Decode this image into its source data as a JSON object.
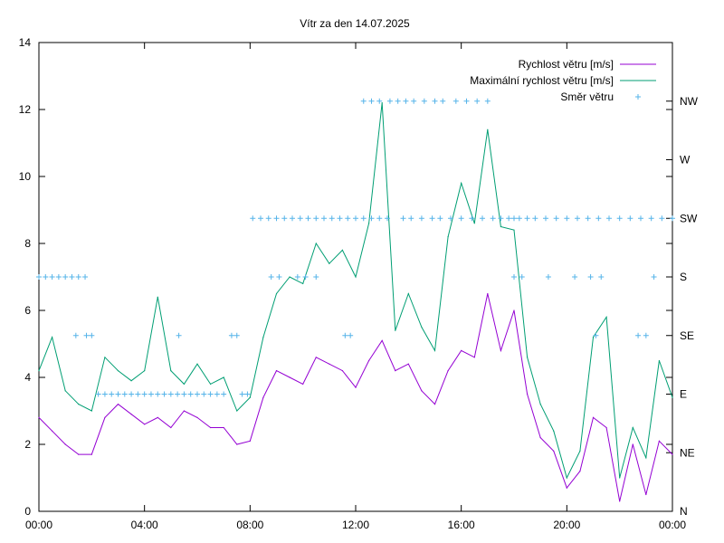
{
  "chart_data": {
    "type": "line",
    "title": "Vítr za den 14.07.2025",
    "x_ticks": [
      "00:00",
      "04:00",
      "08:00",
      "12:00",
      "16:00",
      "20:00",
      "00:00"
    ],
    "x_range_hours": [
      0,
      24
    ],
    "y_range": [
      0,
      14
    ],
    "y_ticks": [
      0,
      2,
      4,
      6,
      8,
      10,
      12,
      14
    ],
    "y2_range_degrees": [
      0,
      360
    ],
    "y2_ticks": [
      "N",
      "NE",
      "E",
      "SE",
      "S",
      "SW",
      "W",
      "NW"
    ],
    "grid": false,
    "legend": "top-right",
    "colors": {
      "speed": "#9400d3",
      "gust": "#009e73",
      "direction": "#56b4e9"
    },
    "series": [
      {
        "name": "Rychlost větru [m/s]",
        "axis": "left",
        "style": "line",
        "x": [
          0,
          0.5,
          1,
          1.5,
          2,
          2.5,
          3,
          3.5,
          4,
          4.5,
          5,
          5.5,
          6,
          6.5,
          7,
          7.5,
          8,
          8.5,
          9,
          9.5,
          10,
          10.5,
          11,
          11.5,
          12,
          12.5,
          13,
          13.5,
          14,
          14.5,
          15,
          15.5,
          16,
          16.5,
          17,
          17.5,
          18,
          18.5,
          19,
          19.5,
          20,
          20.5,
          21,
          21.5,
          22,
          22.5,
          23,
          23.5,
          24
        ],
        "values": [
          2.8,
          2.4,
          2.0,
          1.7,
          1.7,
          2.8,
          3.2,
          2.9,
          2.6,
          2.8,
          2.5,
          3.0,
          2.8,
          2.5,
          2.5,
          2.0,
          2.1,
          3.4,
          4.2,
          4.0,
          3.8,
          4.6,
          4.4,
          4.2,
          3.7,
          4.5,
          5.1,
          4.2,
          4.4,
          3.6,
          3.2,
          4.2,
          4.8,
          4.6,
          6.5,
          4.8,
          6.0,
          3.5,
          2.2,
          1.8,
          0.7,
          1.2,
          2.8,
          2.5,
          0.3,
          2.0,
          0.5,
          2.1,
          1.7
        ]
      },
      {
        "name": "Maximální rychlost větru [m/s]",
        "axis": "left",
        "style": "line",
        "x": [
          0,
          0.5,
          1,
          1.5,
          2,
          2.5,
          3,
          3.5,
          4,
          4.5,
          5,
          5.5,
          6,
          6.5,
          7,
          7.5,
          8,
          8.5,
          9,
          9.5,
          10,
          10.5,
          11,
          11.5,
          12,
          12.5,
          13,
          13.5,
          14,
          14.5,
          15,
          15.5,
          16,
          16.5,
          17,
          17.5,
          18,
          18.5,
          19,
          19.5,
          20,
          20.5,
          21,
          21.5,
          22,
          22.5,
          23,
          23.5,
          24
        ],
        "values": [
          4.2,
          5.2,
          3.6,
          3.2,
          3.0,
          4.6,
          4.2,
          3.9,
          4.2,
          6.4,
          4.2,
          3.8,
          4.4,
          3.8,
          4.0,
          3.0,
          3.4,
          5.2,
          6.5,
          7.0,
          6.8,
          8.0,
          7.4,
          7.8,
          7.0,
          8.6,
          12.2,
          5.4,
          6.5,
          5.5,
          4.8,
          8.2,
          9.8,
          8.6,
          11.4,
          8.5,
          8.4,
          4.6,
          3.2,
          2.4,
          1.0,
          1.8,
          5.2,
          5.8,
          1.0,
          2.5,
          1.6,
          4.5,
          3.4
        ]
      },
      {
        "name": "Směr větru",
        "axis": "right",
        "style": "points",
        "unit": "degrees",
        "x": [
          0,
          0.25,
          0.5,
          0.75,
          1,
          1.25,
          1.5,
          1.75,
          1.4,
          1.8,
          2.0,
          2.25,
          2.5,
          2.75,
          3,
          3.25,
          3.5,
          3.75,
          4,
          4.25,
          4.5,
          4.75,
          5,
          5.25,
          5.5,
          5.75,
          6,
          6.25,
          6.5,
          6.75,
          7,
          5.3,
          7.3,
          7.5,
          7.7,
          7.9,
          8.1,
          8.4,
          8.7,
          9.0,
          9.3,
          9.6,
          9.9,
          10.2,
          10.5,
          10.8,
          11.1,
          11.4,
          11.7,
          12.0,
          12.3,
          12.6,
          12.9,
          13.2,
          8.8,
          9.1,
          9.8,
          10.1,
          10.5,
          11.6,
          11.8,
          12.3,
          12.6,
          12.9,
          13.3,
          13.6,
          13.9,
          14.2,
          14.6,
          15.0,
          15.3,
          15.8,
          16.2,
          16.6,
          17.0,
          13.8,
          14.1,
          14.5,
          14.9,
          15.2,
          15.6,
          16.0,
          16.4,
          16.8,
          17.2,
          17.5,
          17.8,
          18.0,
          18.2,
          18.5,
          18.8,
          19.2,
          19.6,
          20.0,
          20.4,
          20.8,
          21.2,
          21.6,
          22.0,
          22.4,
          22.8,
          23.2,
          23.6,
          24.0,
          18.0,
          18.3,
          19.3,
          20.3,
          20.9,
          21.3,
          23.3,
          21.1,
          22.7,
          23.0
        ],
        "values": [
          180,
          180,
          180,
          180,
          180,
          180,
          180,
          180,
          135,
          135,
          135,
          90,
          90,
          90,
          90,
          90,
          90,
          90,
          90,
          90,
          90,
          90,
          90,
          90,
          90,
          90,
          90,
          90,
          90,
          90,
          90,
          135,
          135,
          135,
          90,
          90,
          225,
          225,
          225,
          225,
          225,
          225,
          225,
          225,
          225,
          225,
          225,
          225,
          225,
          225,
          225,
          225,
          225,
          225,
          180,
          180,
          180,
          180,
          180,
          135,
          135,
          315,
          315,
          315,
          315,
          315,
          315,
          315,
          315,
          315,
          315,
          315,
          315,
          315,
          315,
          225,
          225,
          225,
          225,
          225,
          225,
          225,
          225,
          225,
          225,
          225,
          225,
          225,
          225,
          225,
          225,
          225,
          225,
          225,
          225,
          225,
          225,
          225,
          225,
          225,
          225,
          225,
          225,
          225,
          180,
          180,
          180,
          180,
          180,
          180,
          180,
          135,
          135,
          135
        ]
      }
    ]
  }
}
